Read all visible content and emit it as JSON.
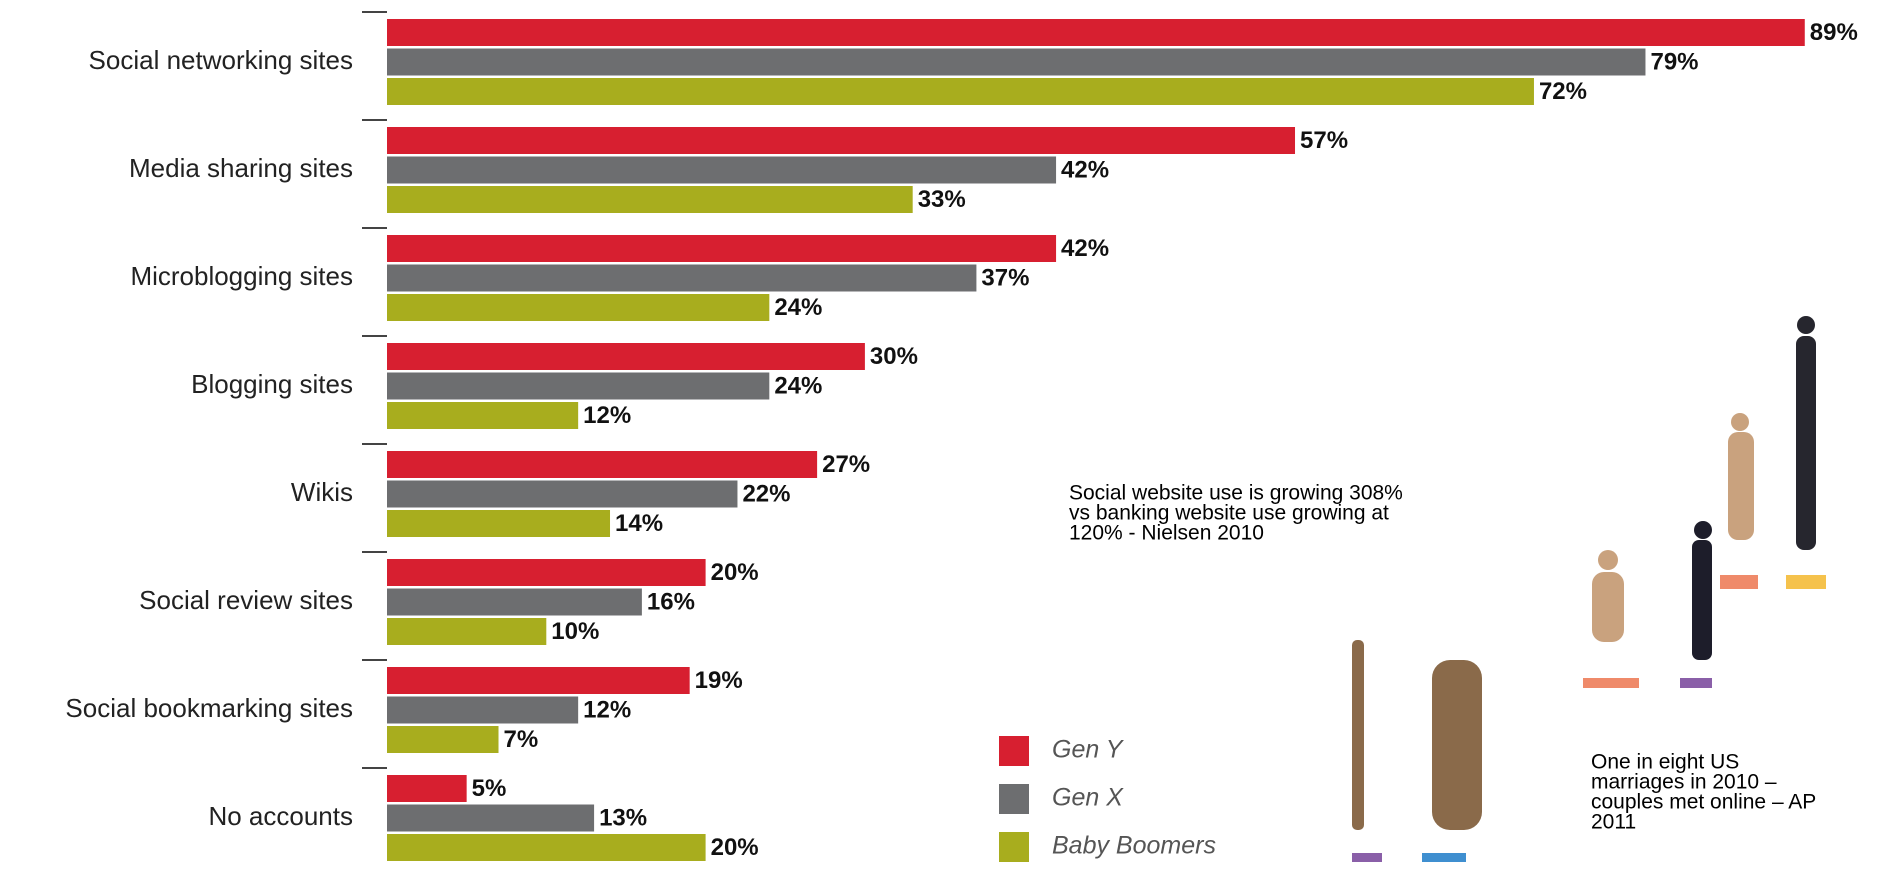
{
  "chart_data": {
    "type": "bar",
    "orientation": "horizontal",
    "categories": [
      "Social networking sites",
      "Media sharing sites",
      "Microblogging sites",
      "Blogging sites",
      "Wikis",
      "Social review sites",
      "Social bookmarking sites",
      "No accounts"
    ],
    "series": [
      {
        "name": "Gen Y",
        "color": "#d71f30",
        "values": [
          89,
          57,
          42,
          30,
          27,
          20,
          19,
          5
        ],
        "value_labels": [
          "89%",
          "57%",
          "42%",
          "30%",
          "27%",
          "20%",
          "19%",
          "5%"
        ]
      },
      {
        "name": "Gen X",
        "color": "#6d6e70",
        "values": [
          79,
          42,
          37,
          24,
          22,
          16,
          12,
          13
        ],
        "value_labels": [
          "79%",
          "42%",
          "37%",
          "24%",
          "22%",
          "16%",
          "12%",
          "13%"
        ]
      },
      {
        "name": "Baby Boomers",
        "color": "#a8ad1e",
        "values": [
          72,
          33,
          24,
          12,
          14,
          10,
          7,
          20
        ],
        "value_labels": [
          "72%",
          "33%",
          "24%",
          "12%",
          "14%",
          "10%",
          "7%",
          "20%"
        ]
      }
    ],
    "annotations": [
      [
        "Social website use is growing 308%",
        "vs banking website use growing at",
        "120% - Nielsen 2010"
      ],
      [
        "One in eight US",
        "marriages in 2010 –",
        "couples met online – AP",
        "2011"
      ]
    ]
  }
}
